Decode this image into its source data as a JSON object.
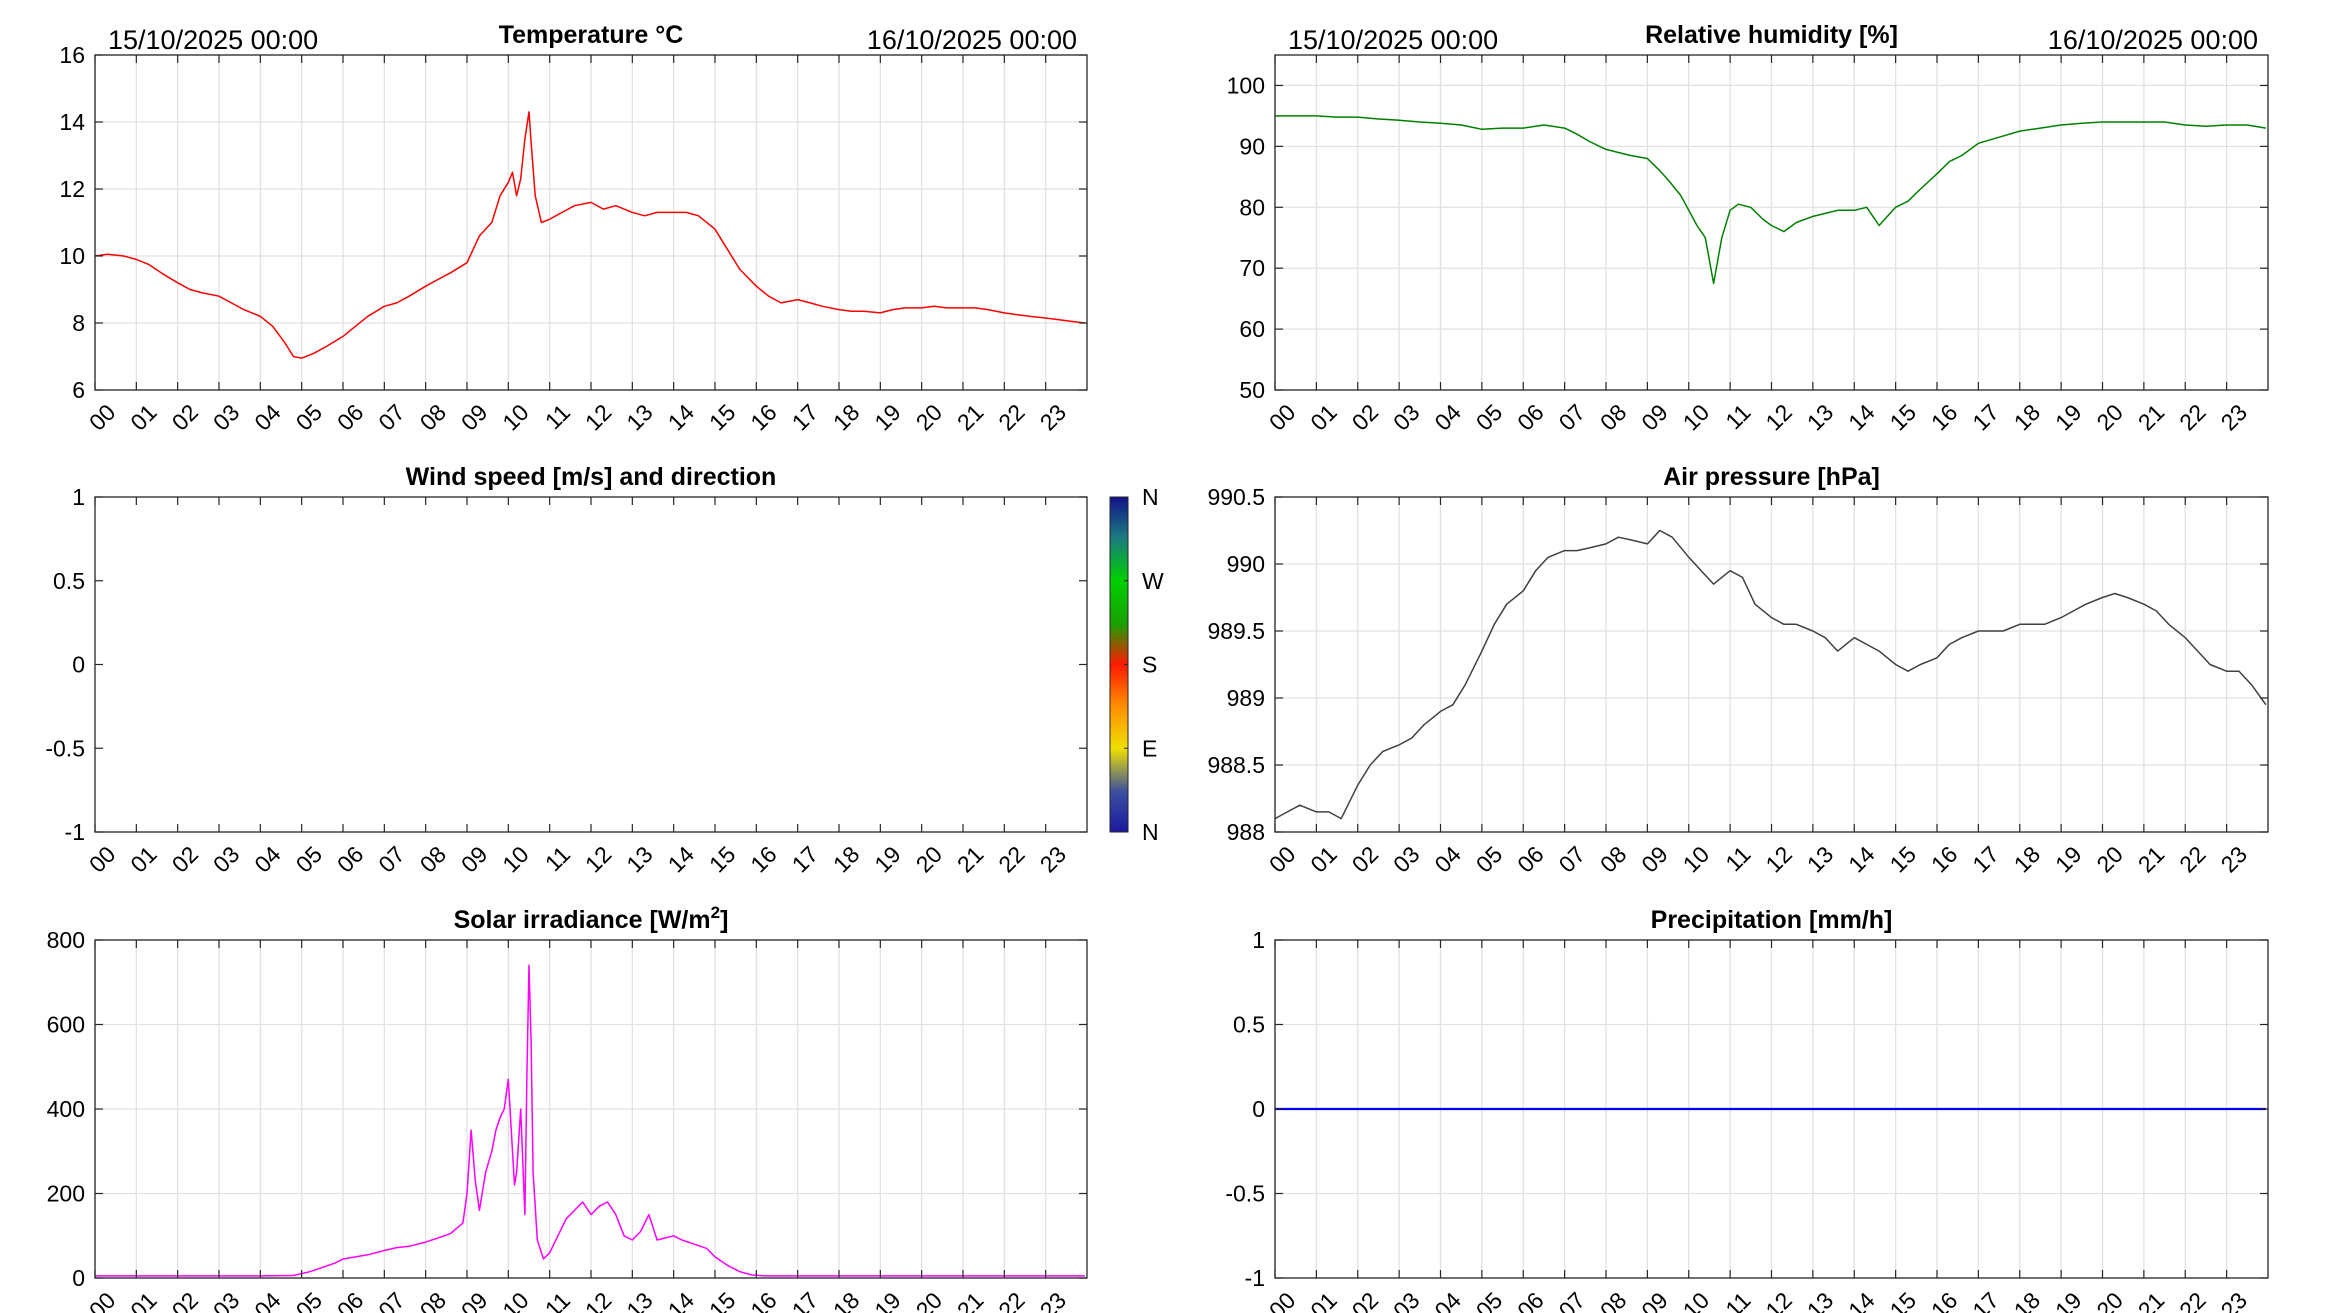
{
  "hours": [
    "00",
    "01",
    "02",
    "03",
    "04",
    "05",
    "06",
    "07",
    "08",
    "09",
    "10",
    "11",
    "12",
    "13",
    "14",
    "15",
    "16",
    "17",
    "18",
    "19",
    "20",
    "21",
    "22",
    "23"
  ],
  "date_start": "15/10/2025 00:00",
  "date_end": "16/10/2025 00:00",
  "compass_labels": [
    "N",
    "W",
    "S",
    "E",
    "N"
  ],
  "chart_data": [
    {
      "id": "temperature",
      "type": "line",
      "title": "Temperature °C",
      "ylim": [
        6,
        16
      ],
      "yticks": [
        "6",
        "8",
        "10",
        "12",
        "14",
        "16"
      ],
      "xlim_hours": [
        0,
        24
      ],
      "color": "#ff0000",
      "grid": true,
      "series": [
        {
          "x": [
            0,
            0.3,
            0.7,
            1,
            1.3,
            1.6,
            2,
            2.3,
            2.6,
            3,
            3.3,
            3.6,
            4,
            4.3,
            4.6,
            4.8,
            5,
            5.3,
            5.6,
            6,
            6.3,
            6.6,
            7,
            7.3,
            7.6,
            8,
            8.3,
            8.6,
            9,
            9.3,
            9.6,
            9.8,
            10,
            10.1,
            10.2,
            10.3,
            10.4,
            10.5,
            10.55,
            10.65,
            10.8,
            11,
            11.3,
            11.6,
            12,
            12.3,
            12.6,
            13,
            13.3,
            13.6,
            14,
            14.3,
            14.6,
            15,
            15.3,
            15.6,
            16,
            16.3,
            16.6,
            17,
            17.3,
            17.6,
            18,
            18.3,
            18.6,
            19,
            19.3,
            19.6,
            20,
            20.3,
            20.6,
            21,
            21.3,
            21.6,
            22,
            22.3,
            22.6,
            23,
            23.3,
            23.6,
            23.95
          ],
          "y": [
            10,
            10.05,
            10,
            9.9,
            9.75,
            9.5,
            9.2,
            9,
            8.9,
            8.8,
            8.6,
            8.4,
            8.2,
            7.9,
            7.4,
            7,
            6.95,
            7.1,
            7.3,
            7.6,
            7.9,
            8.2,
            8.5,
            8.6,
            8.8,
            9.1,
            9.3,
            9.5,
            9.8,
            10.6,
            11,
            11.8,
            12.2,
            12.5,
            11.8,
            12.3,
            13.5,
            14.3,
            13.4,
            11.8,
            11,
            11.1,
            11.3,
            11.5,
            11.6,
            11.4,
            11.5,
            11.3,
            11.2,
            11.3,
            11.3,
            11.3,
            11.2,
            10.8,
            10.2,
            9.6,
            9.1,
            8.8,
            8.6,
            8.7,
            8.6,
            8.5,
            8.4,
            8.35,
            8.35,
            8.3,
            8.4,
            8.45,
            8.45,
            8.5,
            8.45,
            8.45,
            8.45,
            8.4,
            8.3,
            8.25,
            8.2,
            8.15,
            8.1,
            8.05,
            8
          ]
        }
      ]
    },
    {
      "id": "humidity",
      "type": "line",
      "title": "Relative humidity [%]",
      "ylim": [
        50,
        105
      ],
      "yticks": [
        "50",
        "60",
        "70",
        "80",
        "90",
        "100"
      ],
      "xlim_hours": [
        0,
        24
      ],
      "color": "#008000",
      "grid": true,
      "series": [
        {
          "x": [
            0,
            0.5,
            1,
            1.5,
            2,
            2.5,
            3,
            3.5,
            4,
            4.5,
            5,
            5.5,
            6,
            6.5,
            7,
            7.3,
            7.6,
            8,
            8.3,
            8.6,
            9,
            9.3,
            9.5,
            9.8,
            10,
            10.2,
            10.4,
            10.6,
            10.8,
            11,
            11.2,
            11.5,
            11.8,
            12,
            12.3,
            12.6,
            13,
            13.3,
            13.6,
            14,
            14.3,
            14.6,
            15,
            15.3,
            15.6,
            16,
            16.3,
            16.6,
            17,
            17.5,
            18,
            18.5,
            19,
            19.5,
            20,
            20.5,
            21,
            21.5,
            22,
            22.5,
            23,
            23.5,
            23.95
          ],
          "y": [
            95,
            95,
            95,
            94.8,
            94.8,
            94.5,
            94.3,
            94,
            93.8,
            93.5,
            92.8,
            93,
            93,
            93.5,
            93,
            92,
            90.8,
            89.5,
            89,
            88.5,
            88,
            86,
            84.5,
            82,
            79.5,
            77,
            75,
            67.5,
            75,
            79.5,
            80.5,
            80,
            78,
            77,
            76,
            77.5,
            78.5,
            79,
            79.5,
            79.5,
            80,
            77,
            80,
            81,
            83,
            85.5,
            87.5,
            88.5,
            90.5,
            91.5,
            92.5,
            93,
            93.5,
            93.8,
            94,
            94,
            94,
            94,
            93.5,
            93.3,
            93.5,
            93.5,
            93
          ]
        }
      ]
    },
    {
      "id": "wind",
      "type": "scatter",
      "title": "Wind speed [m/s] and direction",
      "ylim": [
        -1,
        1
      ],
      "yticks": [
        "-1",
        "-0.5",
        "0",
        "0.5",
        "1"
      ],
      "xlim_hours": [
        0,
        24
      ],
      "grid": false,
      "colorbar": [
        "N",
        "W",
        "S",
        "E",
        "N"
      ],
      "series": []
    },
    {
      "id": "pressure",
      "type": "line",
      "title": "Air pressure [hPa]",
      "ylim": [
        988,
        990.5
      ],
      "yticks": [
        "988",
        "988.5",
        "989",
        "989.5",
        "990",
        "990.5"
      ],
      "xlim_hours": [
        0,
        24
      ],
      "color": "#404040",
      "grid": true,
      "series": [
        {
          "x": [
            0,
            0.3,
            0.6,
            1,
            1.3,
            1.6,
            2,
            2.3,
            2.6,
            3,
            3.3,
            3.6,
            4,
            4.3,
            4.6,
            5,
            5.3,
            5.6,
            6,
            6.3,
            6.6,
            7,
            7.3,
            7.6,
            8,
            8.3,
            8.6,
            9,
            9.3,
            9.6,
            10,
            10.3,
            10.6,
            11,
            11.3,
            11.6,
            12,
            12.3,
            12.6,
            13,
            13.3,
            13.6,
            14,
            14.3,
            14.6,
            15,
            15.3,
            15.6,
            16,
            16.3,
            16.6,
            17,
            17.3,
            17.6,
            18,
            18.3,
            18.6,
            19,
            19.3,
            19.6,
            20,
            20.3,
            20.6,
            21,
            21.3,
            21.6,
            22,
            22.3,
            22.6,
            23,
            23.3,
            23.6,
            23.95
          ],
          "y": [
            988.1,
            988.15,
            988.2,
            988.15,
            988.15,
            988.1,
            988.35,
            988.5,
            988.6,
            988.65,
            988.7,
            988.8,
            988.9,
            988.95,
            989.1,
            989.35,
            989.55,
            989.7,
            989.8,
            989.95,
            990.05,
            990.1,
            990.1,
            990.12,
            990.15,
            990.2,
            990.18,
            990.15,
            990.25,
            990.2,
            990.05,
            989.95,
            989.85,
            989.95,
            989.9,
            989.7,
            989.6,
            989.55,
            989.55,
            989.5,
            989.45,
            989.35,
            989.45,
            989.4,
            989.35,
            989.25,
            989.2,
            989.25,
            989.3,
            989.4,
            989.45,
            989.5,
            989.5,
            989.5,
            989.55,
            989.55,
            989.55,
            989.6,
            989.65,
            989.7,
            989.75,
            989.78,
            989.75,
            989.7,
            989.65,
            989.55,
            989.45,
            989.35,
            989.25,
            989.2,
            989.2,
            989.1,
            988.95
          ]
        }
      ]
    },
    {
      "id": "solar",
      "type": "line",
      "title": "Solar irradiance [W/m2]",
      "ylim": [
        0,
        800
      ],
      "yticks": [
        "0",
        "200",
        "400",
        "600",
        "800"
      ],
      "xlim_hours": [
        0,
        24
      ],
      "color": "#ff00ff",
      "grid": true,
      "series": [
        {
          "x": [
            0,
            1,
            2,
            3,
            4,
            4.8,
            5.2,
            5.5,
            5.8,
            6,
            6.3,
            6.6,
            7,
            7.3,
            7.6,
            8,
            8.3,
            8.6,
            8.9,
            9,
            9.1,
            9.2,
            9.3,
            9.45,
            9.6,
            9.7,
            9.8,
            9.9,
            10,
            10.1,
            10.15,
            10.2,
            10.3,
            10.4,
            10.45,
            10.5,
            10.55,
            10.6,
            10.7,
            10.85,
            11,
            11.2,
            11.4,
            11.6,
            11.8,
            12,
            12.2,
            12.4,
            12.6,
            12.8,
            13,
            13.2,
            13.4,
            13.5,
            13.6,
            13.8,
            14,
            14.2,
            14.5,
            14.8,
            15,
            15.3,
            15.6,
            15.9,
            16.2,
            16.5,
            17,
            18,
            19,
            20,
            21,
            22,
            23,
            23.95
          ],
          "y": [
            5,
            5,
            5,
            5,
            5,
            6,
            15,
            25,
            35,
            45,
            50,
            55,
            65,
            72,
            75,
            85,
            95,
            105,
            130,
            200,
            350,
            230,
            160,
            250,
            300,
            350,
            380,
            400,
            470,
            300,
            220,
            250,
            400,
            150,
            480,
            740,
            560,
            250,
            90,
            45,
            60,
            100,
            140,
            160,
            180,
            150,
            170,
            180,
            150,
            100,
            90,
            110,
            150,
            120,
            90,
            95,
            100,
            90,
            80,
            70,
            50,
            30,
            15,
            7,
            5,
            5,
            5,
            5,
            5,
            5,
            5,
            5,
            5,
            5
          ]
        }
      ]
    },
    {
      "id": "precip",
      "type": "line",
      "title": "Precipitation [mm/h]",
      "ylim": [
        -1,
        1
      ],
      "yticks": [
        "-1",
        "-0.5",
        "0",
        "0.5",
        "1"
      ],
      "xlim_hours": [
        0,
        24
      ],
      "color": "#0000ff",
      "grid": true,
      "series": [
        {
          "x": [
            0,
            23.95
          ],
          "y": [
            0,
            0
          ]
        }
      ]
    }
  ]
}
